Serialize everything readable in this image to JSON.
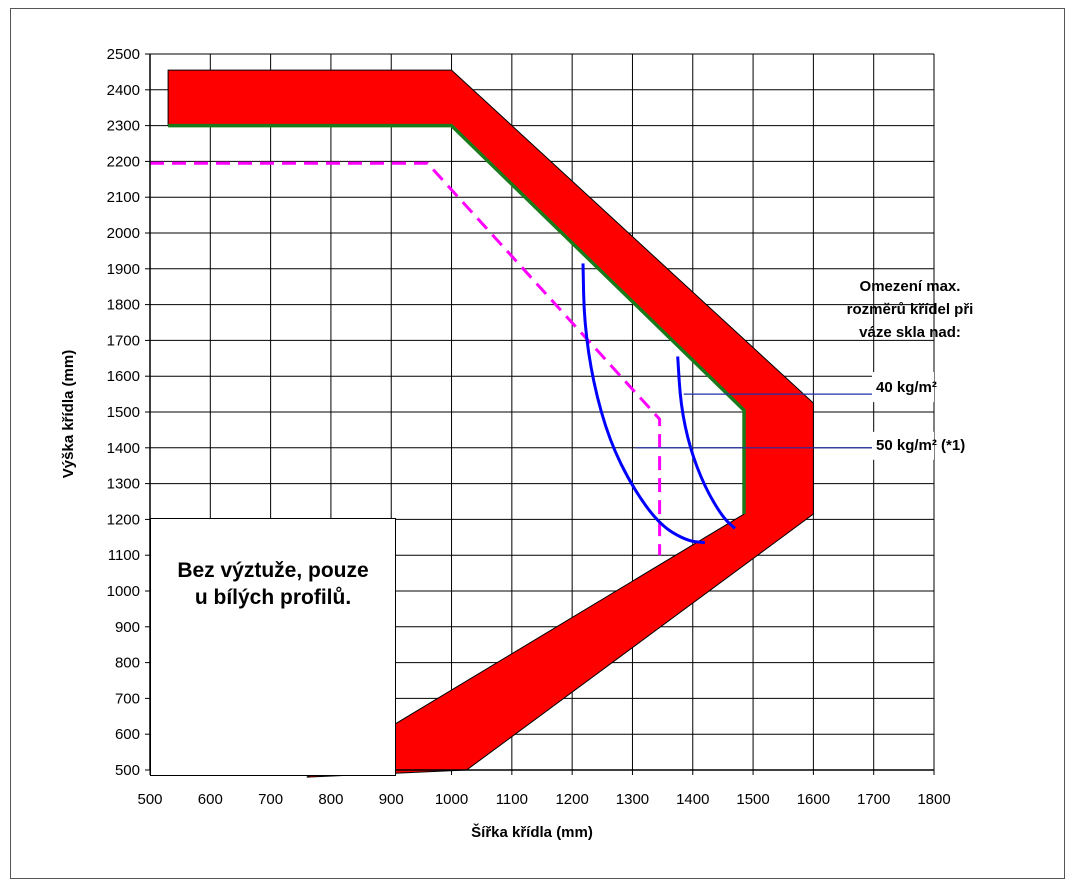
{
  "chart_data": {
    "type": "line",
    "xlabel": "Šířka křídla (mm)",
    "ylabel": "Výška křídla (mm)",
    "xlim": [
      500,
      1800
    ],
    "ylim": [
      500,
      2500
    ],
    "x_ticks": [
      500,
      600,
      700,
      800,
      900,
      1000,
      1100,
      1200,
      1300,
      1400,
      1500,
      1600,
      1700,
      1800
    ],
    "y_ticks": [
      500,
      600,
      700,
      800,
      900,
      1000,
      1100,
      1200,
      1300,
      1400,
      1500,
      1600,
      1700,
      1800,
      1900,
      2000,
      2100,
      2200,
      2300,
      2400,
      2500
    ],
    "grid": true,
    "limit_band": {
      "color": "#ff0000",
      "outline": "#000000",
      "points": [
        [
          530,
          2455
        ],
        [
          1000,
          2455
        ],
        [
          1600,
          1525
        ],
        [
          1600,
          1215
        ],
        [
          1025,
          500
        ],
        [
          760,
          480
        ],
        [
          1485,
          1215
        ],
        [
          1485,
          1505
        ],
        [
          1000,
          2300
        ],
        [
          530,
          2300
        ]
      ]
    },
    "series": [
      {
        "color": "#1a7a1a",
        "style": "solid",
        "x": [
          530,
          1000,
          1485,
          1485
        ],
        "y": [
          2300,
          2300,
          1505,
          1215
        ]
      },
      {
        "color": "#ff00ff",
        "style": "dashed",
        "x": [
          500,
          960,
          1345,
          1345
        ],
        "y": [
          2195,
          2195,
          1480,
          1100
        ]
      },
      {
        "color": "#0000ff",
        "style": "solid",
        "x": [
          1218,
          1220,
          1235,
          1262,
          1300,
          1345,
          1390,
          1420
        ],
        "y": [
          1915,
          1750,
          1580,
          1420,
          1290,
          1185,
          1140,
          1135
        ]
      },
      {
        "color": "#0000ff",
        "style": "solid",
        "x": [
          1375,
          1380,
          1395,
          1420,
          1450,
          1470
        ],
        "y": [
          1655,
          1520,
          1400,
          1290,
          1205,
          1175
        ]
      }
    ],
    "annotations": {
      "title": [
        "Omezení max.",
        "rozměrů křídel při",
        "váze skla nad:"
      ],
      "limit_40": {
        "text": "40 kg/m²",
        "y": 1550,
        "x_from": 1385,
        "line_color": "#1f2fa8"
      },
      "limit_50": {
        "text": "50 kg/m² (*1)",
        "y": 1400,
        "x_from": 1305,
        "line_color": "#1f2fa8"
      }
    },
    "note": [
      "Bez výztuže, pouze",
      "u bílých profilů."
    ]
  }
}
